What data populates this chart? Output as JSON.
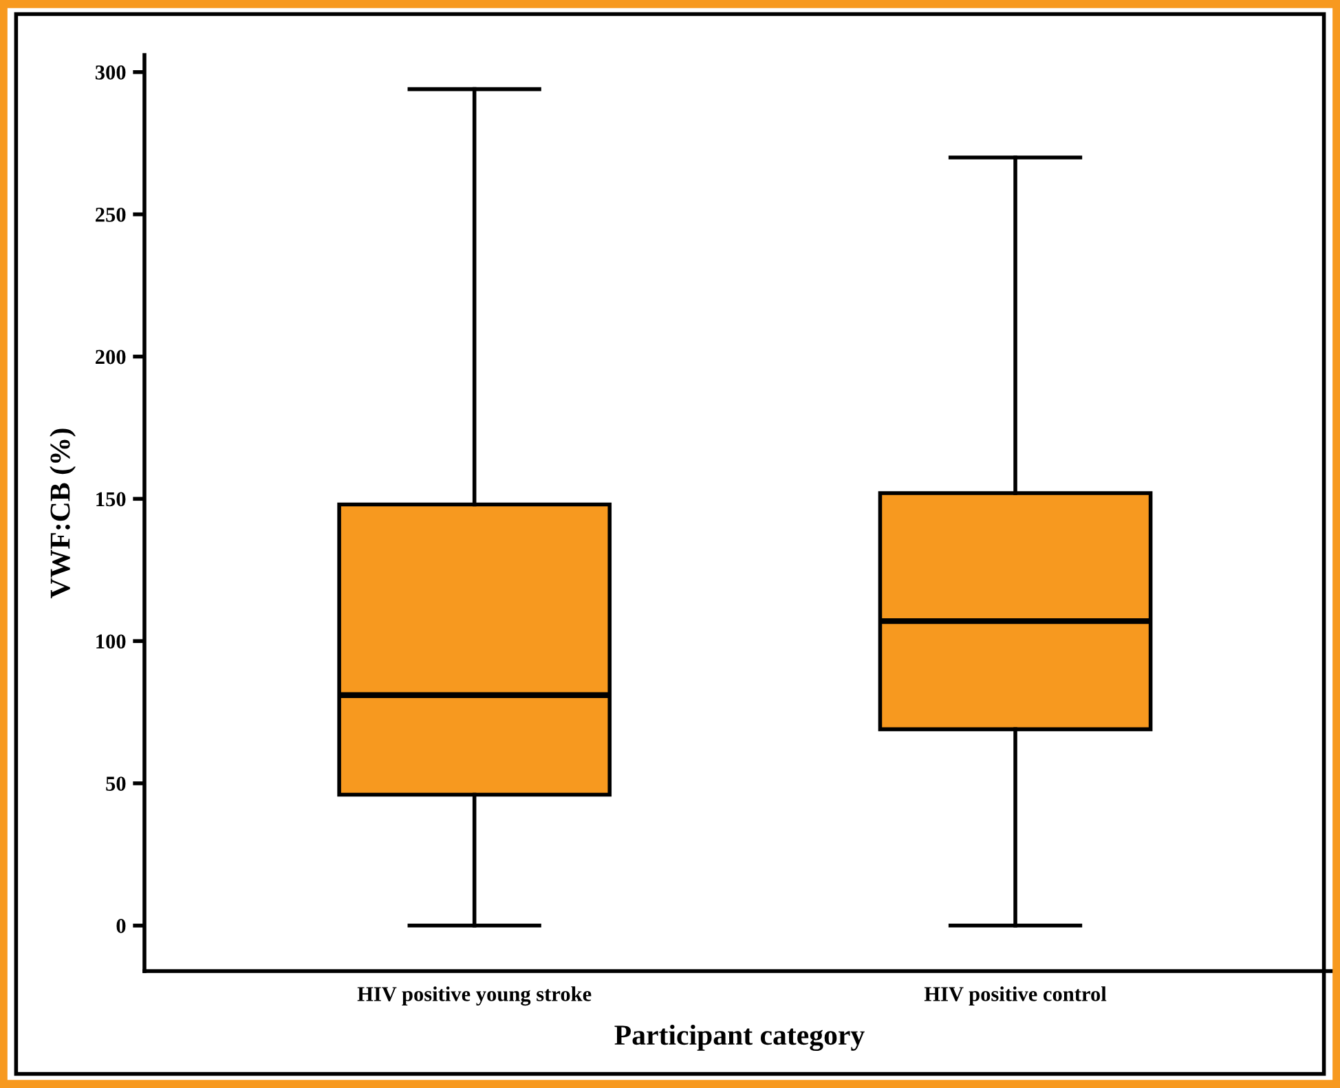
{
  "chart_data": {
    "type": "box",
    "xlabel": "Participant category",
    "ylabel": "VWF:CB (%)",
    "categories": [
      "HIV positive young stroke",
      "HIV positive control"
    ],
    "boxes": [
      {
        "low": 0,
        "q1": 46,
        "median": 81,
        "q3": 148,
        "high": 294
      },
      {
        "low": 0,
        "q1": 69,
        "median": 107,
        "q3": 152,
        "high": 270
      }
    ],
    "color": "#f7991f",
    "ylim": [
      -16,
      306
    ],
    "yticks": [
      0,
      50,
      100,
      150,
      200,
      250,
      300
    ],
    "grid": false,
    "legend": false
  }
}
